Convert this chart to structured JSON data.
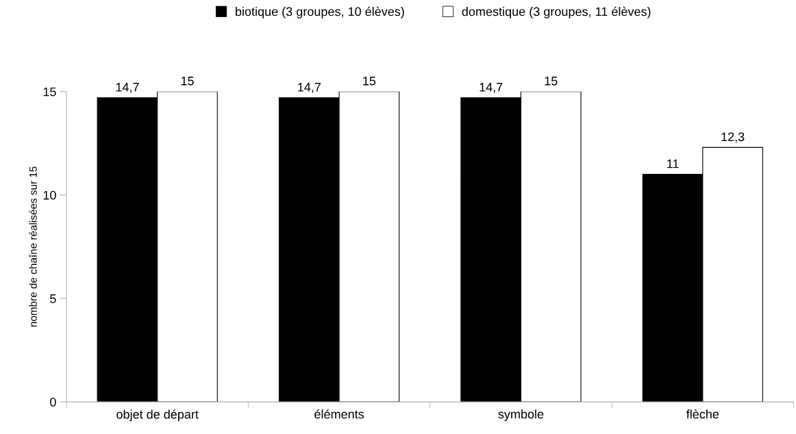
{
  "chart_data": {
    "type": "bar",
    "ylabel": "nombre de chaîne réalisées sur 15",
    "categories": [
      "objet de départ",
      "éléments",
      "symbole",
      "flèche"
    ],
    "series": [
      {
        "name": "biotique (3 groupes, 10 élèves)",
        "color": "#000000",
        "values": [
          14.7,
          14.7,
          14.7,
          11
        ],
        "value_labels": [
          "14,7",
          "14,7",
          "14,7",
          "11"
        ]
      },
      {
        "name": "domestique (3 groupes, 11 élèves)",
        "color": "#ffffff",
        "values": [
          15,
          15,
          15,
          12.3
        ],
        "value_labels": [
          "15",
          "15",
          "15",
          "12,3"
        ]
      }
    ],
    "ylim": [
      0,
      15
    ],
    "yticks": [
      0,
      5,
      10,
      15
    ],
    "grid": false,
    "legend": "top",
    "marker": "square"
  }
}
